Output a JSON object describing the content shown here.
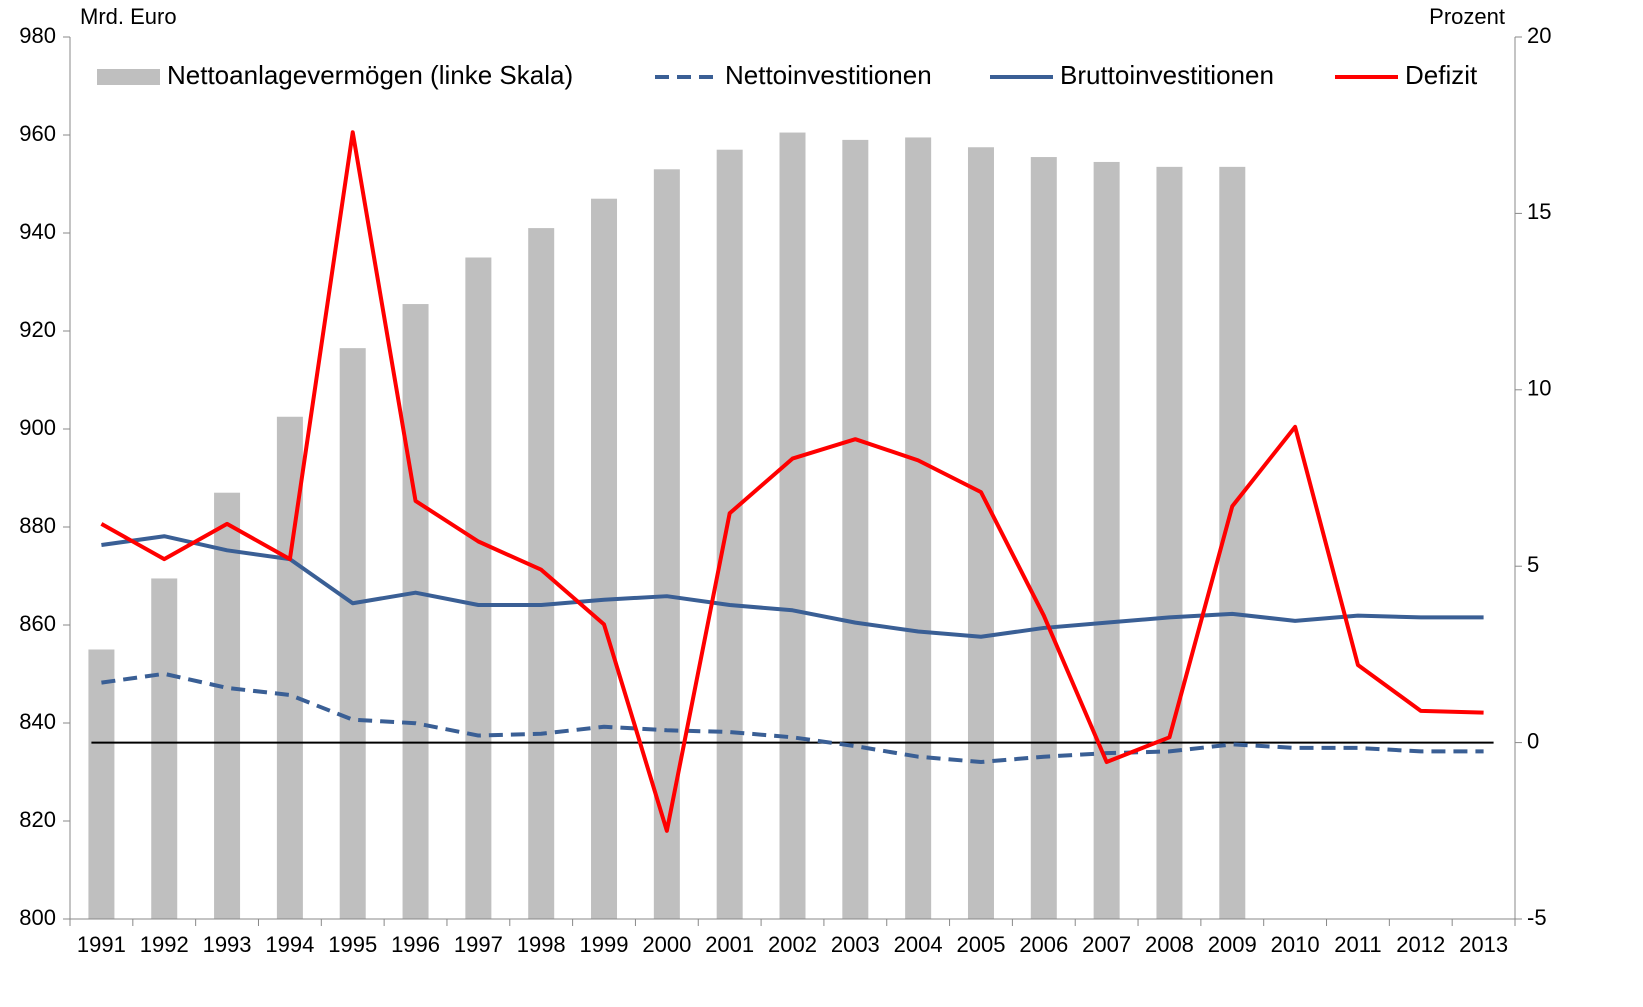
{
  "chart_data": {
    "type": "combo",
    "ylabel": "Mrd. Euro",
    "y2label": "Prozent",
    "categories": [
      "1991",
      "1992",
      "1993",
      "1994",
      "1995",
      "1996",
      "1997",
      "1998",
      "1999",
      "2000",
      "2001",
      "2002",
      "2003",
      "2004",
      "2005",
      "2006",
      "2007",
      "2008",
      "2009",
      "2010",
      "2011",
      "2012",
      "2013"
    ],
    "ylim": [
      800,
      980
    ],
    "yticks": [
      800,
      820,
      840,
      860,
      880,
      900,
      920,
      940,
      960,
      980
    ],
    "y2lim": [
      -5,
      20
    ],
    "y2ticks": [
      -5,
      0,
      5,
      10,
      15,
      20
    ],
    "series": [
      {
        "name": "Nettoanlagevermögen (linke Skala)",
        "type": "bar",
        "color": "#bfbfbf",
        "axis": "y",
        "values": [
          855,
          869.5,
          887,
          902.5,
          916.5,
          925.5,
          935,
          941,
          947,
          953,
          957,
          960.5,
          959,
          959.5,
          957.5,
          955.5,
          954.5,
          953.5,
          953.5,
          null,
          null,
          null,
          null
        ]
      },
      {
        "name": "Nettoinvestitionen",
        "type": "line",
        "dashed": true,
        "color": "#3a5f95",
        "axis": "y2",
        "values": [
          1.7,
          1.95,
          1.55,
          1.35,
          0.65,
          0.55,
          0.2,
          0.25,
          0.45,
          0.35,
          0.3,
          0.15,
          -0.1,
          -0.4,
          -0.55,
          -0.4,
          -0.3,
          -0.25,
          -0.05,
          -0.15,
          -0.15,
          -0.25,
          -0.25
        ]
      },
      {
        "name": "Bruttoinvestitionen",
        "type": "line",
        "color": "#3a5f95",
        "axis": "y2",
        "values": [
          5.6,
          5.85,
          5.45,
          5.2,
          3.95,
          4.25,
          3.9,
          3.9,
          4.05,
          4.15,
          3.9,
          3.75,
          3.4,
          3.15,
          3.0,
          3.25,
          3.4,
          3.55,
          3.65,
          3.45,
          3.6,
          3.55,
          3.55
        ]
      },
      {
        "name": "Defizit",
        "type": "line",
        "color": "#ff0000",
        "axis": "y2",
        "values": [
          6.2,
          5.2,
          6.2,
          5.2,
          17.3,
          6.85,
          5.7,
          4.9,
          3.35,
          -2.5,
          6.5,
          8.05,
          8.6,
          8.0,
          7.1,
          3.6,
          -0.55,
          0.15,
          6.7,
          8.95,
          2.2,
          0.9,
          0.85
        ]
      }
    ]
  }
}
